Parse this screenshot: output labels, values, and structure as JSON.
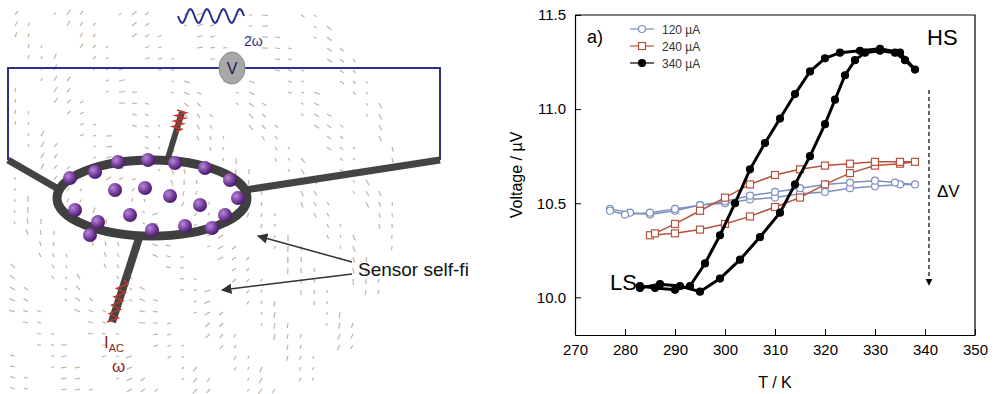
{
  "diagram": {
    "voltmeter": "V",
    "frequency_out": "2ω",
    "current": "I",
    "current_sub": "AC",
    "frequency_in": "ω",
    "label": "Sensor self-fi"
  },
  "chart_data": {
    "type": "line",
    "x_label": "T / K",
    "y_label": "Voltage / µV",
    "annotations": [
      "a)",
      "HS",
      "LS",
      "ΔV"
    ],
    "xlim": [
      270,
      350
    ],
    "xticks": [
      270,
      280,
      290,
      300,
      310,
      320,
      330,
      340,
      350
    ],
    "ylim": [
      9.8,
      11.5
    ],
    "yticks": [
      {
        "value": 10,
        "label": "10.0"
      },
      10.5,
      {
        "value": 11,
        "label": "11.0"
      },
      11.5
    ],
    "legend": "upper left",
    "series": [
      {
        "name": "120 µA",
        "color": "#7f8fbf",
        "marker": "circle-open",
        "x": [
          277,
          281,
          285,
          290,
          295,
          300,
          305,
          310,
          315,
          320,
          325,
          330,
          335,
          338,
          334,
          330,
          325,
          320,
          315,
          310,
          305,
          300,
          295,
          290,
          285,
          280,
          277
        ],
        "values": [
          10.47,
          10.45,
          10.44,
          10.46,
          10.49,
          10.5,
          10.52,
          10.53,
          10.55,
          10.56,
          10.58,
          10.59,
          10.6,
          10.6,
          10.61,
          10.62,
          10.61,
          10.6,
          10.58,
          10.56,
          10.54,
          10.51,
          10.49,
          10.47,
          10.45,
          10.44,
          10.46
        ]
      },
      {
        "name": "240 µA",
        "color": "#b5533c",
        "marker": "square-open",
        "x": [
          285,
          290,
          295,
          300,
          305,
          310,
          315,
          320,
          325,
          330,
          335,
          338,
          335,
          330,
          325,
          320,
          315,
          310,
          305,
          300,
          295,
          290,
          286
        ],
        "values": [
          10.33,
          10.34,
          10.36,
          10.39,
          10.43,
          10.48,
          10.53,
          10.6,
          10.66,
          10.7,
          10.71,
          10.72,
          10.72,
          10.72,
          10.71,
          10.7,
          10.68,
          10.65,
          10.6,
          10.53,
          10.46,
          10.39,
          10.34
        ]
      },
      {
        "name": "340 µA",
        "color": "#000000",
        "marker": "circle",
        "x": [
          283,
          287,
          291,
          295,
          299,
          303,
          307,
          311,
          314,
          317,
          320,
          322,
          324,
          326,
          328,
          331,
          334,
          336,
          338,
          335,
          331,
          327,
          323,
          320,
          317,
          314,
          311,
          308,
          305,
          302,
          299,
          296,
          293,
          290,
          286,
          283
        ],
        "values": [
          10.05,
          10.07,
          10.06,
          10.03,
          10.1,
          10.2,
          10.32,
          10.45,
          10.6,
          10.75,
          10.92,
          11.05,
          11.18,
          11.26,
          11.3,
          11.31,
          11.3,
          11.26,
          11.21,
          11.3,
          11.32,
          11.31,
          11.3,
          11.27,
          11.2,
          11.08,
          10.95,
          10.82,
          10.68,
          10.5,
          10.33,
          10.18,
          10.06,
          10.04,
          10.05,
          10.06
        ]
      }
    ]
  }
}
